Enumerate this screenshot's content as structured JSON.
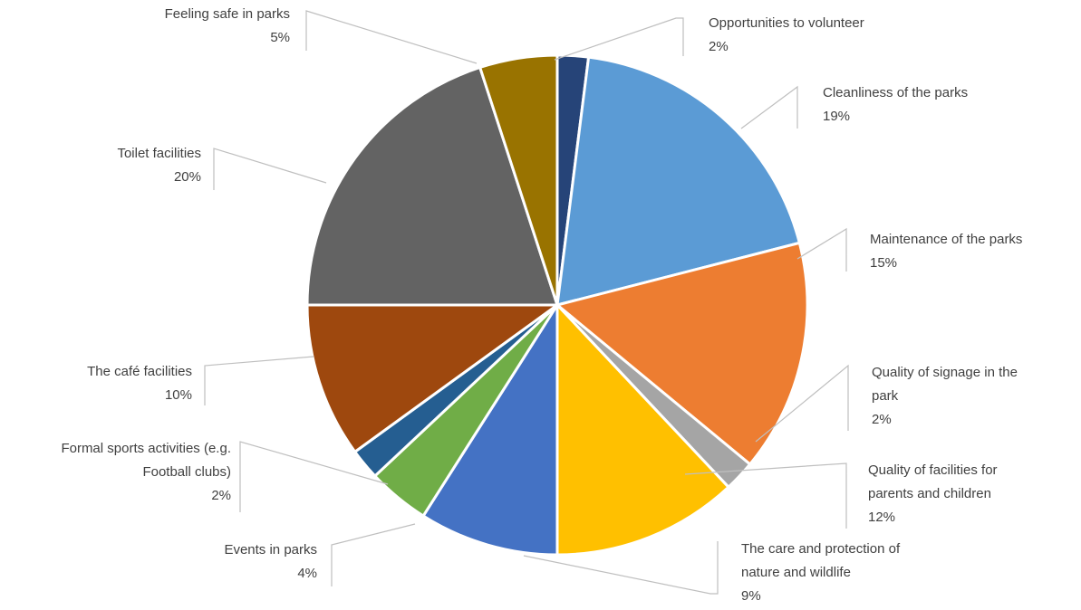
{
  "chart_data": {
    "type": "pie",
    "title": "",
    "legend": "none",
    "slices": [
      {
        "label": [
          "Opportunities to volunteer"
        ],
        "value_label": "2%",
        "value": 2,
        "color": "#264478"
      },
      {
        "label": [
          "Cleanliness of the parks"
        ],
        "value_label": "19%",
        "value": 19,
        "color": "#5b9bd5"
      },
      {
        "label": [
          "Maintenance of the parks"
        ],
        "value_label": "15%",
        "value": 15,
        "color": "#ed7d31"
      },
      {
        "label": [
          "Quality of signage  in the",
          "park"
        ],
        "value_label": "2%",
        "value": 2,
        "color": "#a5a5a5"
      },
      {
        "label": [
          "Quality of facilities for",
          "parents and children"
        ],
        "value_label": "12%",
        "value": 12,
        "color": "#ffc000"
      },
      {
        "label": [
          "The care and protection of",
          "nature and wildlife"
        ],
        "value_label": "9%",
        "value": 9,
        "color": "#4472c4"
      },
      {
        "label": [
          "Events in parks"
        ],
        "value_label": "4%",
        "value": 4,
        "color": "#70ad47"
      },
      {
        "label": [
          "Formal sports activities (e.g.",
          "Football clubs)"
        ],
        "value_label": "2%",
        "value": 2,
        "color": "#255e91"
      },
      {
        "label": [
          "The café facilities"
        ],
        "value_label": "10%",
        "value": 10,
        "color": "#9e480e"
      },
      {
        "label": [
          "Toilet facilities"
        ],
        "value_label": "20%",
        "value": 20,
        "color": "#636363"
      },
      {
        "label": [
          "Feeling safe in parks"
        ],
        "value_label": "5%",
        "value": 5,
        "color": "#997300"
      }
    ]
  }
}
